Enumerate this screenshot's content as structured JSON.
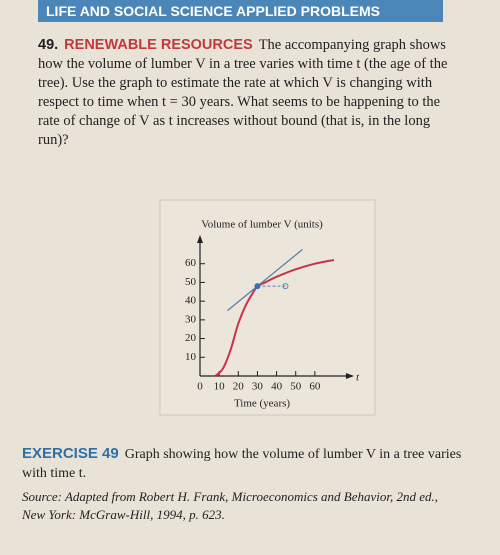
{
  "header": {
    "title": "LIFE AND SOCIAL SCIENCE APPLIED PROBLEMS"
  },
  "problem": {
    "number": "49.",
    "topic": "RENEWABLE RESOURCES",
    "text": "The accompanying graph shows how the volume of lumber V in a tree varies with time t (the age of the tree). Use the graph to estimate the rate at which V is changing with respect to time when t = 30 years. What seems to be happening to the rate of change of V as t increases without bound (that is, in the long run)?"
  },
  "chart_data": {
    "type": "line",
    "ylabel": "Volume of lumber V (units)",
    "xlabel": "Time (years)",
    "xvar": "t",
    "x": [
      8,
      12,
      16,
      20,
      24,
      28,
      30,
      34,
      40,
      50,
      60,
      70
    ],
    "values": [
      0,
      4,
      14,
      28,
      38,
      45,
      48,
      50,
      53,
      57,
      60,
      62
    ],
    "color": "#c8324a",
    "xlim": [
      0,
      70
    ],
    "ylim": [
      0,
      70
    ],
    "xticks": [
      0,
      10,
      20,
      30,
      40,
      50,
      60
    ],
    "yticks": [
      10,
      20,
      30,
      40,
      50,
      60
    ]
  },
  "caption": {
    "label": "EXERCISE 49",
    "text": "Graph showing how the volume of lumber V in a tree varies with time t.",
    "source": "Source: Adapted from Robert H. Frank, Microeconomics and Behavior, 2nd ed., New York: McGraw-Hill, 1994, p. 623."
  }
}
